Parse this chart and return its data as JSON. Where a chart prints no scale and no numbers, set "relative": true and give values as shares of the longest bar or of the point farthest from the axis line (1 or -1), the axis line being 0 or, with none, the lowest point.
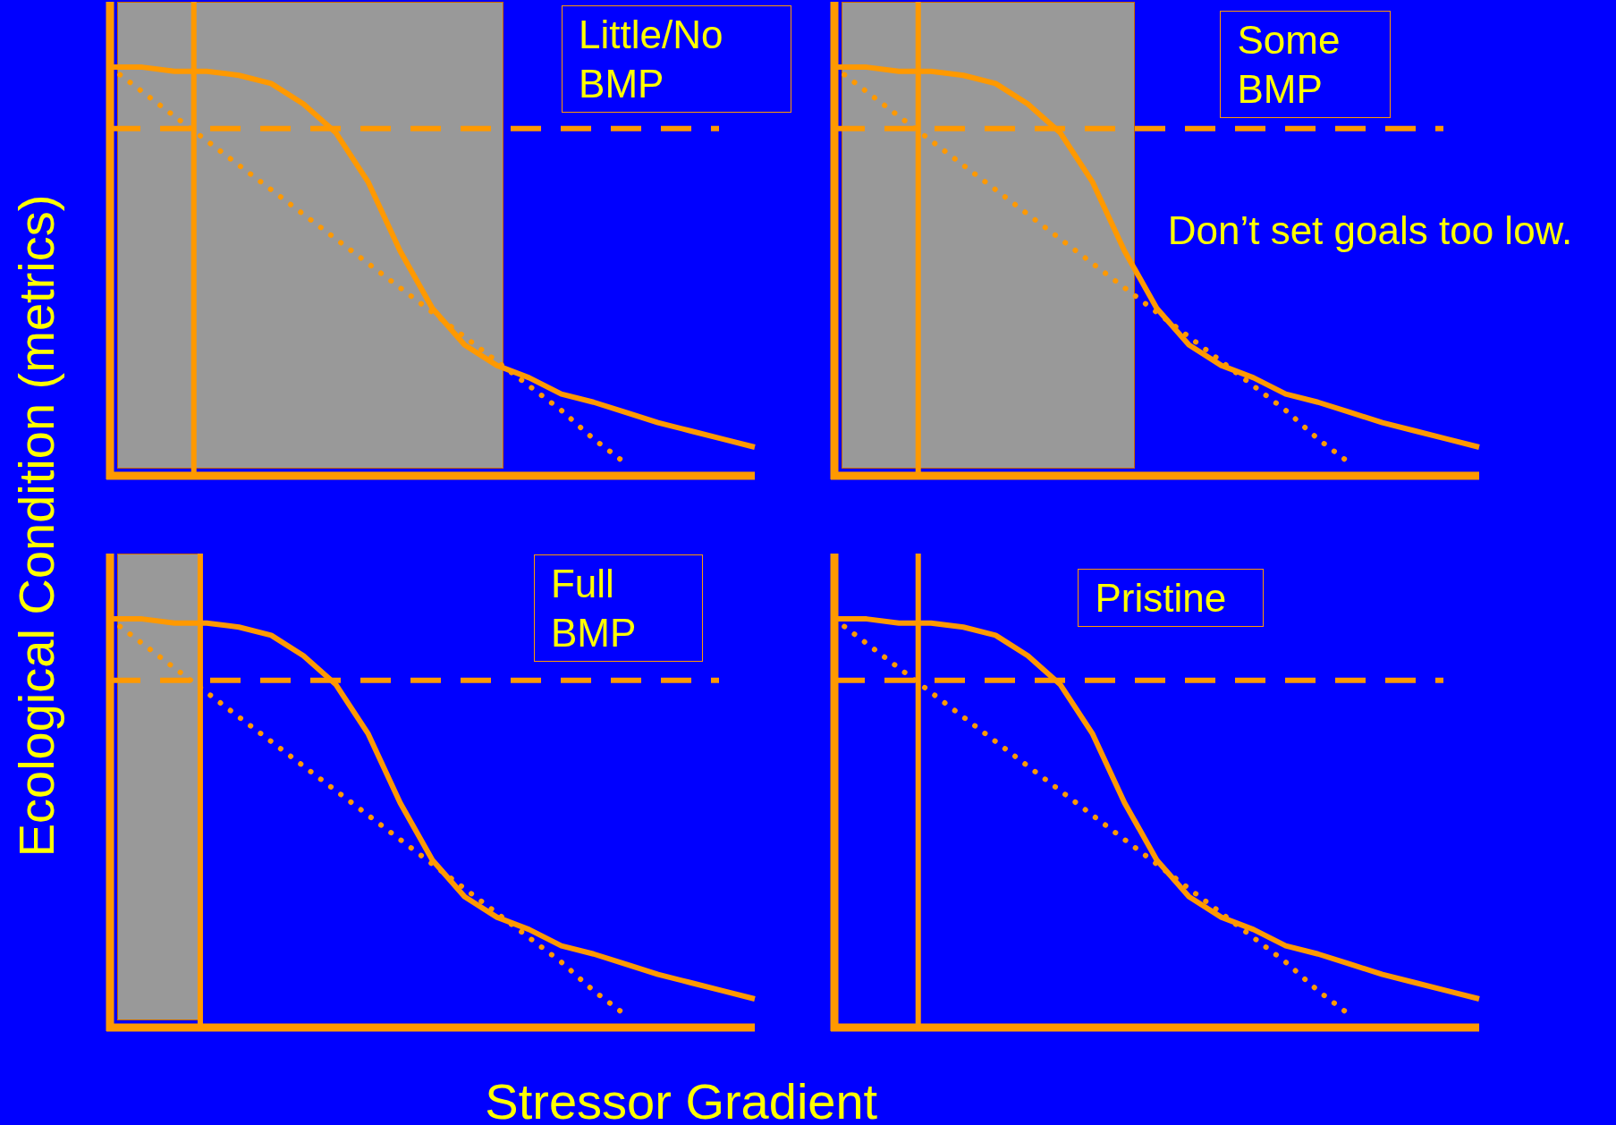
{
  "chart_data": [
    {
      "type": "line",
      "relative": true,
      "tick_labels": false,
      "marker": "none",
      "ylabel": "Ecological Condition (metrics)",
      "categories": [
        null,
        null,
        null,
        null,
        null,
        null,
        null,
        null,
        null,
        null,
        null,
        null,
        null,
        null,
        null,
        null,
        null,
        null,
        null,
        null,
        null
      ],
      "series": [
        {
          "color": "#ff9900",
          "line_style": "solid",
          "values": [
            1.0,
            1.0,
            0.99,
            0.99,
            0.98,
            0.96,
            0.91,
            0.84,
            0.72,
            0.55,
            0.41,
            0.32,
            0.27,
            0.24,
            0.2,
            0.18,
            0.155,
            0.13,
            0.11,
            0.09,
            0.07
          ]
        },
        {
          "color": "#ff9900",
          "line_style": "dotted",
          "values": [
            1.0,
            0.94,
            0.88,
            0.82,
            0.76,
            0.7,
            0.64,
            0.58,
            0.52,
            0.46,
            0.4,
            0.34,
            0.28,
            0.22,
            0.16,
            0.09,
            0.03,
            null,
            null,
            null,
            null
          ]
        }
      ],
      "ref_lines": [
        {
          "axis": "y",
          "value": 0.85,
          "color": "#ff9900",
          "line_style": "dashed"
        }
      ],
      "annotations": [
        "Little/No BMP"
      ]
    },
    {
      "type": "line",
      "relative": true,
      "tick_labels": false,
      "marker": "none",
      "categories": [
        null,
        null,
        null,
        null,
        null,
        null,
        null,
        null,
        null,
        null,
        null,
        null,
        null,
        null,
        null,
        null,
        null,
        null,
        null,
        null,
        null
      ],
      "series": [
        {
          "color": "#ff9900",
          "line_style": "solid",
          "values": [
            1.0,
            1.0,
            0.99,
            0.99,
            0.98,
            0.96,
            0.91,
            0.84,
            0.72,
            0.55,
            0.41,
            0.32,
            0.27,
            0.24,
            0.2,
            0.18,
            0.155,
            0.13,
            0.11,
            0.09,
            0.07
          ]
        },
        {
          "color": "#ff9900",
          "line_style": "dotted",
          "values": [
            1.0,
            0.94,
            0.88,
            0.82,
            0.76,
            0.7,
            0.64,
            0.58,
            0.52,
            0.46,
            0.4,
            0.34,
            0.28,
            0.22,
            0.16,
            0.09,
            0.03,
            null,
            null,
            null,
            null
          ]
        }
      ],
      "ref_lines": [
        {
          "axis": "y",
          "value": 0.85,
          "color": "#ff9900",
          "line_style": "dashed"
        }
      ],
      "annotations": [
        "Some BMP",
        "Don’t set goals too low."
      ]
    },
    {
      "type": "line",
      "relative": true,
      "tick_labels": false,
      "marker": "none",
      "xlabel": "Stressor Gradient",
      "categories": [
        null,
        null,
        null,
        null,
        null,
        null,
        null,
        null,
        null,
        null,
        null,
        null,
        null,
        null,
        null,
        null,
        null,
        null,
        null,
        null,
        null
      ],
      "series": [
        {
          "color": "#ff9900",
          "line_style": "solid",
          "values": [
            1.0,
            1.0,
            0.99,
            0.99,
            0.98,
            0.96,
            0.91,
            0.84,
            0.72,
            0.55,
            0.41,
            0.32,
            0.27,
            0.24,
            0.2,
            0.18,
            0.155,
            0.13,
            0.11,
            0.09,
            0.07
          ]
        },
        {
          "color": "#ff9900",
          "line_style": "dotted",
          "values": [
            1.0,
            0.94,
            0.88,
            0.82,
            0.76,
            0.7,
            0.64,
            0.58,
            0.52,
            0.46,
            0.4,
            0.34,
            0.28,
            0.22,
            0.16,
            0.09,
            0.03,
            null,
            null,
            null,
            null
          ]
        }
      ],
      "ref_lines": [
        {
          "axis": "y",
          "value": 0.85,
          "color": "#ff9900",
          "line_style": "dashed"
        }
      ],
      "annotations": [
        "Full BMP"
      ]
    },
    {
      "type": "line",
      "relative": true,
      "tick_labels": false,
      "marker": "none",
      "categories": [
        null,
        null,
        null,
        null,
        null,
        null,
        null,
        null,
        null,
        null,
        null,
        null,
        null,
        null,
        null,
        null,
        null,
        null,
        null,
        null,
        null
      ],
      "series": [
        {
          "color": "#ff9900",
          "line_style": "solid",
          "values": [
            1.0,
            1.0,
            0.99,
            0.99,
            0.98,
            0.96,
            0.91,
            0.84,
            0.72,
            0.55,
            0.41,
            0.32,
            0.27,
            0.24,
            0.2,
            0.18,
            0.155,
            0.13,
            0.11,
            0.09,
            0.07
          ]
        },
        {
          "color": "#ff9900",
          "line_style": "dotted",
          "values": [
            1.0,
            0.94,
            0.88,
            0.82,
            0.76,
            0.7,
            0.64,
            0.58,
            0.52,
            0.46,
            0.4,
            0.34,
            0.28,
            0.22,
            0.16,
            0.09,
            0.03,
            null,
            null,
            null,
            null
          ]
        }
      ],
      "ref_lines": [
        {
          "axis": "y",
          "value": 0.85,
          "color": "#ff9900",
          "line_style": "dashed"
        }
      ],
      "annotations": [
        "Pristine"
      ]
    }
  ]
}
